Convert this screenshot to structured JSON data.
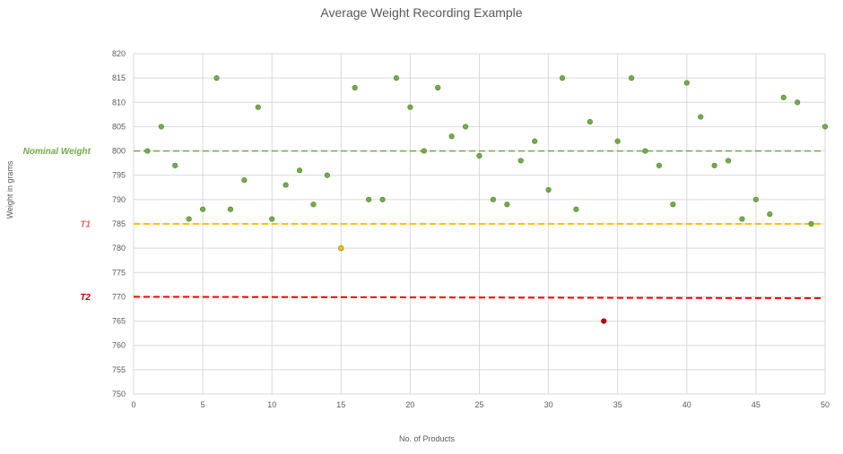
{
  "chart_data": {
    "type": "scatter",
    "title": "Average Weight Recording Example",
    "xlabel": "No. of Products",
    "ylabel": "Weight in grams",
    "xlim": [
      0,
      50
    ],
    "ylim": [
      750,
      820
    ],
    "xticks": [
      0,
      5,
      10,
      15,
      20,
      25,
      30,
      35,
      40,
      45,
      50
    ],
    "yticks": [
      750,
      755,
      760,
      765,
      770,
      775,
      780,
      785,
      790,
      795,
      800,
      805,
      810,
      815,
      820
    ],
    "grid": true,
    "legend": "none",
    "colors": {
      "point": "#70ad47",
      "point_edge": "#548235",
      "warning_point": "#ffc000",
      "reject_point": "#c00000",
      "nominal_line": "#70ad47",
      "t1_line": "#ffc000",
      "t2_line": "#ff0000",
      "t2_label": "#c00000",
      "t1_label": "#e06666",
      "grid": "#d9d9d9",
      "text": "#595959"
    },
    "reference_lines": [
      {
        "label": "Nominal Weight",
        "y": 800,
        "color": "#70ad47"
      },
      {
        "label": "T1",
        "y": 785,
        "color": "#ffc000"
      },
      {
        "label": "T2",
        "y": 770,
        "y_end": 769.7,
        "color": "#ff0000"
      }
    ],
    "series": [
      {
        "x": [
          1,
          2,
          3,
          4,
          5,
          6,
          7,
          8,
          9,
          10,
          11,
          12,
          13,
          14,
          15,
          16,
          17,
          18,
          19,
          20,
          21,
          22,
          23,
          24,
          25,
          26,
          27,
          28,
          29,
          30,
          31,
          32,
          33,
          34,
          35,
          36,
          37,
          38,
          39,
          40,
          41,
          42,
          43,
          44,
          45,
          46,
          47,
          48,
          49,
          50
        ],
        "y": [
          800,
          805,
          797,
          786,
          788,
          815,
          788,
          794,
          809,
          786,
          793,
          796,
          789,
          795,
          780,
          813,
          790,
          790,
          815,
          809,
          800,
          813,
          803,
          805,
          799,
          790,
          789,
          798,
          802,
          792,
          815,
          788,
          806,
          765,
          802,
          815,
          800,
          797,
          789,
          814,
          807,
          797,
          798,
          786,
          790,
          787,
          811,
          810,
          785,
          805
        ]
      }
    ]
  }
}
